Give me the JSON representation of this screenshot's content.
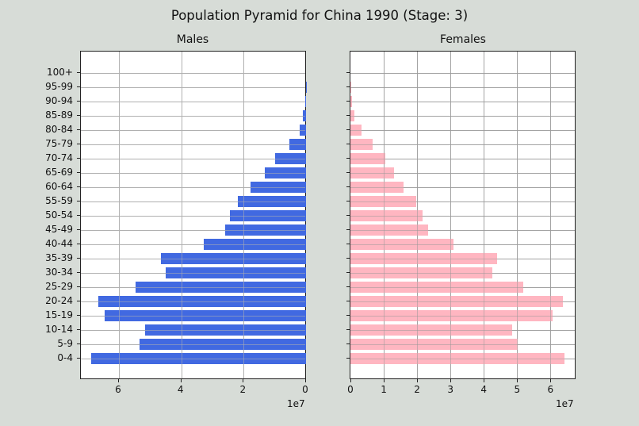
{
  "chart_data": [
    {
      "type": "bar",
      "orientation": "horizontal",
      "title": "Males",
      "suptitle": "Population Pyramid for China 1990 (Stage: 3)",
      "categories": [
        "0-4",
        "5-9",
        "10-14",
        "15-19",
        "20-24",
        "25-29",
        "30-34",
        "35-39",
        "40-44",
        "45-49",
        "50-54",
        "55-59",
        "60-64",
        "65-69",
        "70-74",
        "75-79",
        "80-84",
        "85-89",
        "90-94",
        "95-99",
        "100+"
      ],
      "values": [
        6.88,
        5.33,
        5.15,
        6.45,
        6.65,
        5.46,
        4.49,
        4.64,
        3.27,
        2.59,
        2.45,
        2.18,
        1.77,
        1.32,
        0.98,
        0.54,
        0.2,
        0.09,
        0.03,
        0.01,
        0.0
      ],
      "value_scale": "1e7",
      "xlim": [
        7.22,
        0
      ],
      "xaxis_inverted": true,
      "xticks": [
        6,
        4,
        2,
        0
      ],
      "xlabel": "",
      "ylabel": "",
      "grid": true,
      "color": "#4169e1"
    },
    {
      "type": "bar",
      "orientation": "horizontal",
      "title": "Females",
      "categories": [
        "0-4",
        "5-9",
        "10-14",
        "15-19",
        "20-24",
        "25-29",
        "30-34",
        "35-39",
        "40-44",
        "45-49",
        "50-54",
        "55-59",
        "60-64",
        "65-69",
        "70-74",
        "75-79",
        "80-84",
        "85-89",
        "90-94",
        "95-99",
        "100+"
      ],
      "values": [
        6.42,
        5.01,
        4.86,
        6.07,
        6.38,
        5.18,
        4.25,
        4.4,
        3.1,
        2.33,
        2.16,
        1.97,
        1.6,
        1.31,
        1.05,
        0.67,
        0.33,
        0.13,
        0.05,
        0.01,
        0.0
      ],
      "value_scale": "1e7",
      "xlim": [
        0,
        6.74
      ],
      "xticks": [
        0,
        1,
        2,
        3,
        4,
        5,
        6
      ],
      "xlabel": "",
      "ylabel": "",
      "grid": true,
      "color": "#ffb6c1"
    }
  ],
  "figure": {
    "title": "Population Pyramid for China 1990 (Stage: 3)",
    "males_title": "Males",
    "females_title": "Females",
    "offset_label": "1e7",
    "background": "#d7dcd7",
    "male_color": "#4169e1",
    "female_color": "#ffb6c1"
  }
}
